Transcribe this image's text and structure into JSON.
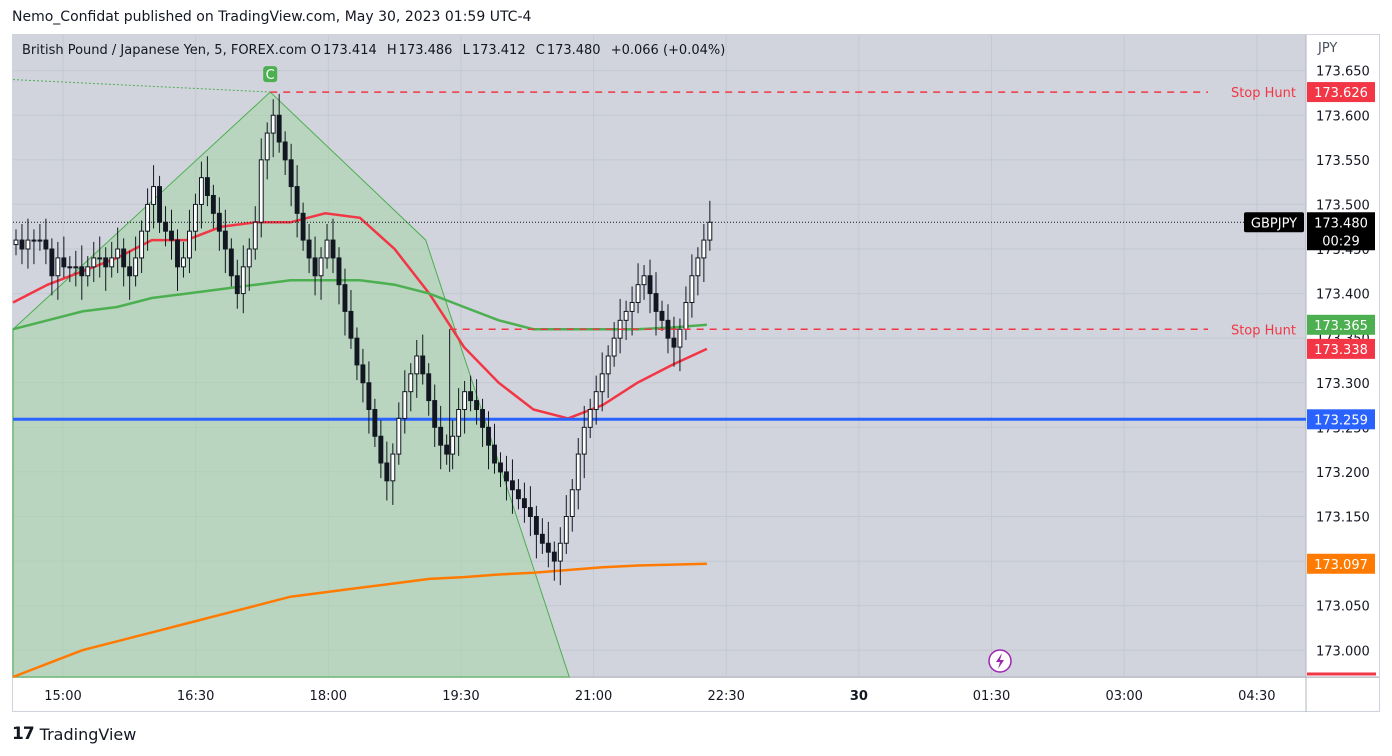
{
  "header": {
    "publisher_line": "Nemo_Confidat published on TradingView.com, May 30, 2023 01:59 UTC-4"
  },
  "legend": {
    "symbol": "British Pound / Japanese Yen, 5, FOREX.com",
    "open_label": "O",
    "open": "173.414",
    "high_label": "H",
    "high": "173.486",
    "low_label": "L",
    "low": "173.412",
    "close_label": "C",
    "close": "173.480",
    "change": "+0.066 (+0.04%)"
  },
  "currency": "JPY",
  "footer": {
    "brand": "TradingView",
    "logo_text": "17"
  },
  "colors": {
    "background": "#d1d4dc",
    "ema_fast": "#f23645",
    "ema_mid": "#4caf50",
    "ema_slow": "#ff7a00",
    "hline": "#2962ff",
    "stop_hunt": "#f23645",
    "pattern_fill": "#a5d6a7"
  },
  "chart_data": {
    "type": "candlestick",
    "title": "",
    "x_ticks": [
      "15:00",
      "16:30",
      "18:00",
      "19:30",
      "21:00",
      "22:30",
      "30",
      "01:30",
      "03:00",
      "04:30"
    ],
    "y_ticks": [
      173.0,
      173.05,
      173.1,
      173.15,
      173.2,
      173.25,
      173.3,
      173.35,
      173.4,
      173.45,
      173.5,
      173.55,
      173.6,
      173.65
    ],
    "y_tick_labels": [
      "173.000",
      "173.050",
      "173.100",
      "173.150",
      "173.200",
      "173.250",
      "173.300",
      "173.350",
      "173.400",
      "173.450",
      "173.500",
      "173.550",
      "173.600",
      "173.650"
    ],
    "ylim": [
      172.97,
      173.69
    ],
    "xlim_bars": [
      0,
      216
    ],
    "last_bar_index": 116,
    "last_price": 173.48,
    "last_price_symbol": "GBPJPY",
    "last_price_timer": "00:29",
    "candles_close": [
      173.46,
      173.45,
      173.46,
      173.46,
      173.46,
      173.45,
      173.42,
      173.44,
      173.43,
      173.43,
      173.43,
      173.42,
      173.43,
      173.44,
      173.44,
      173.43,
      173.44,
      173.45,
      173.43,
      173.42,
      173.44,
      173.47,
      173.5,
      173.52,
      173.48,
      173.47,
      173.46,
      173.43,
      173.44,
      173.47,
      173.5,
      173.53,
      173.51,
      173.49,
      173.47,
      173.45,
      173.42,
      173.4,
      173.43,
      173.45,
      173.48,
      173.55,
      173.58,
      173.6,
      173.57,
      173.55,
      173.52,
      173.49,
      173.46,
      173.44,
      173.42,
      173.44,
      173.46,
      173.44,
      173.41,
      173.38,
      173.35,
      173.32,
      173.3,
      173.27,
      173.24,
      173.21,
      173.19,
      173.22,
      173.26,
      173.29,
      173.31,
      173.33,
      173.31,
      173.28,
      173.25,
      173.23,
      173.22,
      173.24,
      173.27,
      173.29,
      173.28,
      173.27,
      173.25,
      173.23,
      173.21,
      173.2,
      173.19,
      173.18,
      173.17,
      173.16,
      173.15,
      173.13,
      173.12,
      173.11,
      173.1,
      173.12,
      173.15,
      173.18,
      173.22,
      173.25,
      173.27,
      173.29,
      173.31,
      173.33,
      173.35,
      173.37,
      173.38,
      173.39,
      173.41,
      173.42,
      173.4,
      173.38,
      173.37,
      173.35,
      173.34,
      173.36,
      173.39,
      173.42,
      173.44,
      173.46,
      173.48
    ],
    "annotations": [
      {
        "label": "C",
        "price": 173.626,
        "color": "#4caf50"
      },
      {
        "label": "Stop Hunt",
        "price": 173.626,
        "color": "#f23645"
      },
      {
        "label": "Stop Hunt",
        "price": 173.36,
        "color": "#f23645"
      }
    ],
    "price_tags": [
      {
        "value": 173.626,
        "text": "173.626",
        "color": "#f23645"
      },
      {
        "value": 173.48,
        "text": "173.480",
        "color": "#000000"
      },
      {
        "value": 173.365,
        "text": "173.365",
        "color": "#4caf50"
      },
      {
        "value": 173.338,
        "text": "173.338",
        "color": "#f23645"
      },
      {
        "value": 173.259,
        "text": "173.259",
        "color": "#2962ff"
      },
      {
        "value": 173.097,
        "text": "173.097",
        "color": "#ff7a00"
      }
    ],
    "series": [
      {
        "type": "ema_fast",
        "color": "#f23645",
        "values": [
          173.39,
          173.41,
          173.425,
          173.44,
          173.46,
          173.46,
          173.475,
          173.48,
          173.48,
          173.49,
          173.485,
          173.45,
          173.4,
          173.34,
          173.3,
          173.27,
          173.26,
          173.275,
          173.3,
          173.32,
          173.338
        ]
      },
      {
        "type": "ema_mid",
        "color": "#4caf50",
        "values": [
          173.36,
          173.37,
          173.38,
          173.385,
          173.395,
          173.4,
          173.405,
          173.41,
          173.415,
          173.415,
          173.415,
          173.41,
          173.4,
          173.385,
          173.37,
          173.36,
          173.36,
          173.36,
          173.36,
          173.362,
          173.365
        ]
      },
      {
        "type": "ema_slow",
        "color": "#ff7a00",
        "values": [
          172.97,
          172.985,
          173.0,
          173.01,
          173.02,
          173.03,
          173.04,
          173.05,
          173.06,
          173.065,
          173.07,
          173.075,
          173.08,
          173.082,
          173.085,
          173.087,
          173.09,
          173.093,
          173.095,
          173.096,
          173.097
        ]
      },
      {
        "type": "hline",
        "color": "#2962ff",
        "values": [
          173.259
        ]
      }
    ]
  }
}
